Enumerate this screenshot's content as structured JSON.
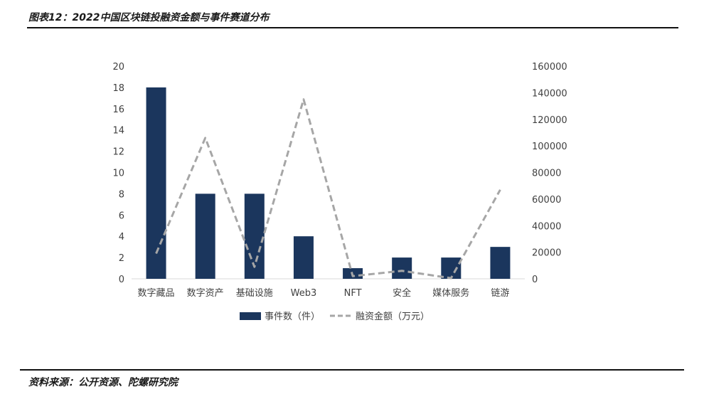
{
  "header": {
    "title": "图表12：2022中国区块链投融资金额与事件赛道分布"
  },
  "footer": {
    "source": "资料来源：公开资源、陀螺研究院"
  },
  "colors": {
    "bar": "#1b365d",
    "line": "#a6a6a6",
    "axis": "#d9d9d9"
  },
  "chart_data": {
    "type": "bar",
    "categories": [
      "数字藏品",
      "数字资产",
      "基础设施",
      "Web3",
      "NFT",
      "安全",
      "媒体服务",
      "链游"
    ],
    "series": [
      {
        "name": "事件数（件）",
        "type": "bar",
        "axis": "left",
        "values": [
          18,
          8,
          8,
          4,
          1,
          2,
          2,
          3
        ]
      },
      {
        "name": "融资金额（万元）",
        "type": "line",
        "style": "dashed",
        "axis": "right",
        "values": [
          19000,
          106000,
          9000,
          135000,
          2000,
          6000,
          500,
          67000
        ]
      }
    ],
    "y_left": {
      "range": [
        0,
        20
      ],
      "ticks": [
        "0",
        "2",
        "4",
        "6",
        "8",
        "10",
        "12",
        "14",
        "16",
        "18",
        "20"
      ]
    },
    "y_right": {
      "range": [
        0,
        160000
      ],
      "ticks": [
        "0",
        "20000",
        "40000",
        "60000",
        "80000",
        "100000",
        "120000",
        "140000",
        "160000"
      ]
    },
    "legend_position": "bottom",
    "grid": false
  }
}
